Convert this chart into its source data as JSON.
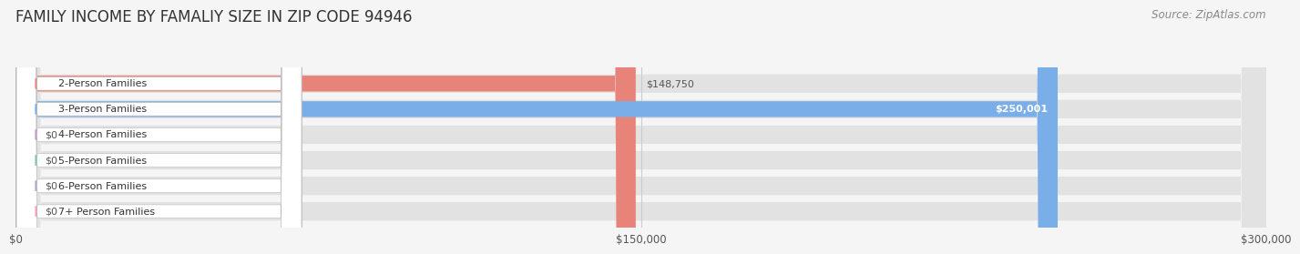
{
  "title": "FAMILY INCOME BY FAMALIY SIZE IN ZIP CODE 94946",
  "source_text": "Source: ZipAtlas.com",
  "categories": [
    "2-Person Families",
    "3-Person Families",
    "4-Person Families",
    "5-Person Families",
    "6-Person Families",
    "7+ Person Families"
  ],
  "values": [
    148750,
    250001,
    0,
    0,
    0,
    0
  ],
  "bar_colors": [
    "#E8837A",
    "#7AAEE8",
    "#C39BD3",
    "#76C7B7",
    "#A9A9D6",
    "#F4A6B8"
  ],
  "label_colors": [
    "#555555",
    "#ffffff",
    "#555555",
    "#555555",
    "#555555",
    "#555555"
  ],
  "value_labels": [
    "$148,750",
    "$250,001",
    "$0",
    "$0",
    "$0",
    "$0"
  ],
  "xlim": [
    0,
    300000
  ],
  "xticks": [
    0,
    150000,
    300000
  ],
  "xtick_labels": [
    "$0",
    "$150,000",
    "$300,000"
  ],
  "bg_color": "#f5f5f5",
  "title_fontsize": 12,
  "source_fontsize": 8.5
}
